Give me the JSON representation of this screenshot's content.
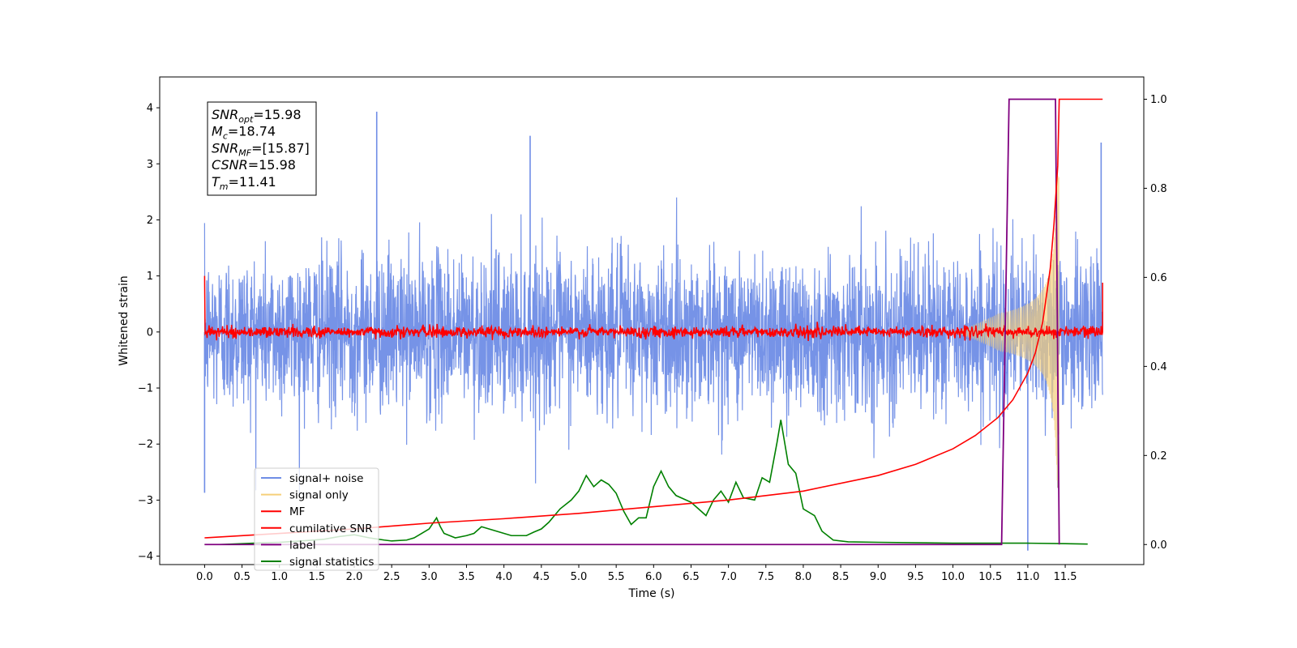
{
  "chart_data": {
    "type": "line",
    "xlabel": "Time (s)",
    "ylabel": "Whitened strain",
    "y2label": "",
    "xlim": [
      -0.6,
      12.55
    ],
    "ylim": [
      -4.15,
      4.55
    ],
    "y2lim": [
      -0.045,
      1.05
    ],
    "x_ticks": [
      0.0,
      0.5,
      1.0,
      1.5,
      2.0,
      2.5,
      3.0,
      3.5,
      4.0,
      4.5,
      5.0,
      5.5,
      6.0,
      6.5,
      7.0,
      7.5,
      8.0,
      8.5,
      9.0,
      9.5,
      10.0,
      10.5,
      11.0,
      11.5
    ],
    "x_tick_labels": [
      "0.0",
      "0.5",
      "1.0",
      "1.5",
      "2.0",
      "2.5",
      "3.0",
      "3.5",
      "4.0",
      "4.5",
      "5.0",
      "5.5",
      "6.0",
      "6.5",
      "7.0",
      "7.5",
      "8.0",
      "8.5",
      "9.0",
      "9.5",
      "10.0",
      "10.5",
      "11.0",
      "11.5"
    ],
    "y_ticks": [
      -4,
      -3,
      -2,
      -1,
      0,
      1,
      2,
      3,
      4
    ],
    "y_tick_labels": [
      "−4",
      "−3",
      "−2",
      "−1",
      "0",
      "1",
      "2",
      "3",
      "4"
    ],
    "y2_ticks": [
      0.0,
      0.2,
      0.4,
      0.6,
      0.8,
      1.0
    ],
    "y2_tick_labels": [
      "0.0",
      "0.2",
      "0.4",
      "0.6",
      "0.8",
      "1.0"
    ],
    "grid": false,
    "legend_position": "lower-left",
    "legend": [
      {
        "name": "signal+ noise",
        "color": "#6f8de6"
      },
      {
        "name": "signal only",
        "color": "#f5cf7a"
      },
      {
        "name": "MF",
        "color": "#ff0000"
      },
      {
        "name": "cumilative SNR",
        "color": "#ff0000"
      },
      {
        "name": "label",
        "color": "#800080"
      },
      {
        "name": "signal statistics",
        "color": "#008000"
      }
    ],
    "series": [
      {
        "name": "signal+ noise",
        "axis": "left",
        "color": "#6f8de6",
        "x_range": [
          0.0,
          12.0
        ],
        "std": 0.7,
        "notable_peaks": [
          [
            2.3,
            3.93
          ],
          [
            4.35,
            3.5
          ],
          [
            11.98,
            3.38
          ],
          [
            0.0,
            -2.87
          ],
          [
            11.0,
            -3.9
          ],
          [
            11.4,
            -2.78
          ]
        ]
      },
      {
        "name": "signal only",
        "axis": "left",
        "color": "#f5cf7a",
        "x_range": [
          10.0,
          11.42
        ],
        "peak_amplitude": 2.8
      },
      {
        "name": "MF",
        "axis": "left",
        "color": "#ff0000",
        "x_range": [
          0.0,
          12.0
        ],
        "level": 0.0,
        "noise_amplitude": 0.1,
        "edge_values": [
          1.0,
          0.88
        ]
      },
      {
        "name": "cumilative SNR",
        "axis": "right",
        "color": "#ff0000",
        "x": [
          0.0,
          1.0,
          2.0,
          3.0,
          4.0,
          5.0,
          6.0,
          7.0,
          8.0,
          9.0,
          9.5,
          10.0,
          10.3,
          10.6,
          10.8,
          11.0,
          11.1,
          11.2,
          11.3,
          11.35,
          11.4,
          11.42,
          12.0
        ],
        "values": [
          0.015,
          0.025,
          0.035,
          0.048,
          0.058,
          0.07,
          0.085,
          0.1,
          0.12,
          0.155,
          0.18,
          0.215,
          0.245,
          0.285,
          0.325,
          0.385,
          0.43,
          0.5,
          0.62,
          0.72,
          0.85,
          1.0,
          1.0
        ]
      },
      {
        "name": "label",
        "axis": "right",
        "color": "#800080",
        "x": [
          0.0,
          10.65,
          10.75,
          11.37,
          11.42
        ],
        "values": [
          0.0,
          0.0,
          1.0,
          1.0,
          0.0
        ]
      },
      {
        "name": "signal statistics",
        "axis": "right",
        "color": "#008000",
        "x": [
          0.0,
          0.2,
          0.5,
          0.8,
          1.0,
          1.3,
          1.6,
          1.8,
          2.0,
          2.2,
          2.4,
          2.5,
          2.7,
          2.8,
          2.9,
          3.0,
          3.1,
          3.15,
          3.2,
          3.35,
          3.5,
          3.6,
          3.7,
          3.8,
          3.9,
          4.0,
          4.1,
          4.3,
          4.4,
          4.5,
          4.6,
          4.75,
          4.9,
          5.0,
          5.1,
          5.2,
          5.3,
          5.4,
          5.5,
          5.6,
          5.7,
          5.8,
          5.9,
          6.0,
          6.1,
          6.2,
          6.3,
          6.5,
          6.6,
          6.7,
          6.8,
          6.9,
          7.0,
          7.1,
          7.2,
          7.35,
          7.45,
          7.55,
          7.65,
          7.7,
          7.8,
          7.9,
          8.0,
          8.15,
          8.25,
          8.4,
          8.6,
          9.0,
          9.5,
          10.0,
          10.5,
          11.0,
          11.5,
          11.8
        ],
        "values": [
          0.0,
          0.0,
          0.002,
          0.004,
          0.005,
          0.008,
          0.012,
          0.018,
          0.022,
          0.015,
          0.01,
          0.008,
          0.01,
          0.015,
          0.025,
          0.035,
          0.06,
          0.04,
          0.025,
          0.015,
          0.02,
          0.025,
          0.04,
          0.035,
          0.03,
          0.025,
          0.02,
          0.02,
          0.028,
          0.035,
          0.05,
          0.08,
          0.1,
          0.12,
          0.155,
          0.13,
          0.145,
          0.135,
          0.115,
          0.075,
          0.045,
          0.06,
          0.06,
          0.13,
          0.165,
          0.13,
          0.11,
          0.095,
          0.08,
          0.065,
          0.1,
          0.12,
          0.095,
          0.14,
          0.105,
          0.1,
          0.15,
          0.14,
          0.23,
          0.28,
          0.18,
          0.16,
          0.08,
          0.065,
          0.03,
          0.01,
          0.006,
          0.005,
          0.004,
          0.003,
          0.003,
          0.003,
          0.002,
          0.001
        ]
      }
    ],
    "annotation": {
      "lines": [
        {
          "base": "SNR",
          "sub": "opt",
          "value": "=15.98"
        },
        {
          "base": "M",
          "sub": "c",
          "value": "=18.74"
        },
        {
          "base": "SNR",
          "sub": "MF",
          "value": "=[15.87]"
        },
        {
          "base": "CSNR",
          "sub": "",
          "value": "=15.98"
        },
        {
          "base": "T",
          "sub": "m",
          "value": "=11.41"
        }
      ]
    }
  }
}
